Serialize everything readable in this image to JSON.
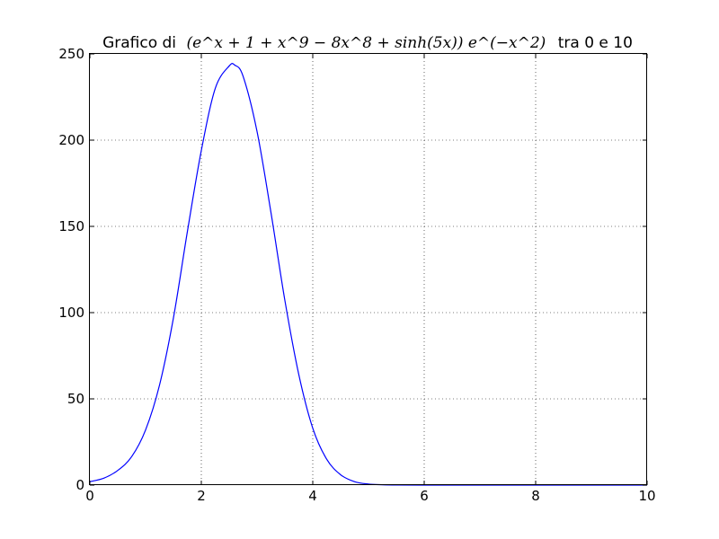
{
  "chart_data": {
    "type": "line",
    "title": {
      "prefix": "Grafico di",
      "formula": "(e^x + 1 + x^9 − 8x^8 + sinh(5x)) e^(−x^2)",
      "suffix": "tra 0 e 10"
    },
    "xlabel": "",
    "ylabel": "",
    "xlim": [
      0,
      10
    ],
    "ylim": [
      0,
      250
    ],
    "x_ticks": [
      "0",
      "2",
      "4",
      "6",
      "8",
      "10"
    ],
    "y_ticks": [
      "0",
      "50",
      "100",
      "150",
      "200",
      "250"
    ],
    "grid": true,
    "series": [
      {
        "color": "#0000ff",
        "x": [
          0,
          0.25,
          0.5,
          0.75,
          1.0,
          1.25,
          1.5,
          1.75,
          2.0,
          2.25,
          2.5,
          2.6,
          2.75,
          3.0,
          3.25,
          3.5,
          3.75,
          4.0,
          4.25,
          4.5,
          4.75,
          5.0,
          5.25,
          5.5,
          6.0,
          7.0,
          8.0,
          9.0,
          10.0
        ],
        "y": [
          2.0,
          4.0,
          8.5,
          16.5,
          32.0,
          58.0,
          97.0,
          147.0,
          194.0,
          230.0,
          243.0,
          243.5,
          237.0,
          205.0,
          158.0,
          107.0,
          64.0,
          33.0,
          15.0,
          6.0,
          2.0,
          0.6,
          0.2,
          0.05,
          0.0,
          0.0,
          0.0,
          0.0,
          0.0
        ]
      }
    ]
  },
  "colors": {
    "line": "#0000ff",
    "frame": "#000000",
    "background": "#ffffff"
  }
}
